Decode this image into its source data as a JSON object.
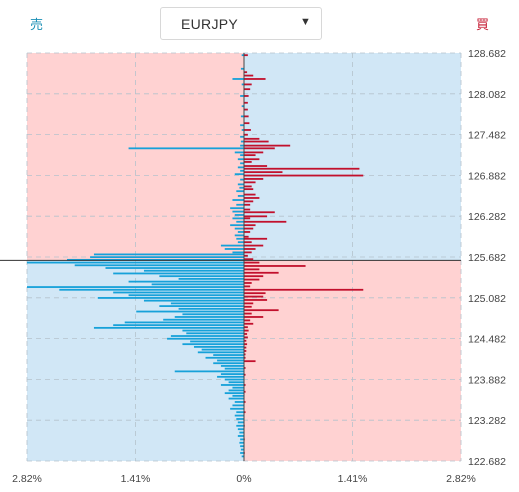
{
  "labels": {
    "sell": "売",
    "buy": "買"
  },
  "selector": {
    "value": "EURJPY",
    "caret": "▼"
  },
  "chart_data": {
    "type": "bar",
    "orientation": "horizontal",
    "current_rate": 125.632,
    "y_ticks": [
      "128.682",
      "128.082",
      "127.482",
      "126.882",
      "126.282",
      "125.682",
      "125.082",
      "124.482",
      "123.882",
      "123.282",
      "122.682"
    ],
    "x_ticks": [
      "2.82%",
      "1.41%",
      "0%",
      "1.41%",
      "2.82%"
    ],
    "ylim": [
      122.682,
      128.682
    ],
    "xlim": [
      -2.82,
      2.82
    ],
    "colors": {
      "sell_bar": "#16a1d9",
      "buy_bar": "#c2102c",
      "upper_left_bg": "#ffd2d2",
      "upper_right_bg": "#d1e7f6",
      "lower_left_bg": "#d1e7f6",
      "lower_right_bg": "#ffd2d2"
    },
    "buy_series": [
      [
        128.65,
        0.05
      ],
      [
        128.4,
        0.04
      ],
      [
        128.35,
        0.12
      ],
      [
        128.3,
        0.28
      ],
      [
        128.22,
        0.1
      ],
      [
        128.15,
        0.08
      ],
      [
        128.05,
        0.06
      ],
      [
        127.95,
        0.05
      ],
      [
        127.85,
        0.05
      ],
      [
        127.75,
        0.06
      ],
      [
        127.65,
        0.07
      ],
      [
        127.55,
        0.09
      ],
      [
        127.48,
        0.05
      ],
      [
        127.42,
        0.2
      ],
      [
        127.38,
        0.32
      ],
      [
        127.32,
        0.6
      ],
      [
        127.28,
        0.4
      ],
      [
        127.22,
        0.25
      ],
      [
        127.18,
        0.15
      ],
      [
        127.12,
        0.2
      ],
      [
        127.08,
        0.1
      ],
      [
        127.02,
        0.3
      ],
      [
        126.98,
        1.5
      ],
      [
        126.93,
        0.5
      ],
      [
        126.88,
        1.55
      ],
      [
        126.83,
        0.25
      ],
      [
        126.78,
        0.15
      ],
      [
        126.72,
        0.1
      ],
      [
        126.68,
        0.12
      ],
      [
        126.6,
        0.15
      ],
      [
        126.55,
        0.2
      ],
      [
        126.5,
        0.12
      ],
      [
        126.45,
        0.08
      ],
      [
        126.38,
        0.08
      ],
      [
        126.34,
        0.4
      ],
      [
        126.28,
        0.3
      ],
      [
        126.25,
        0.08
      ],
      [
        126.2,
        0.55
      ],
      [
        126.15,
        0.15
      ],
      [
        126.1,
        0.12
      ],
      [
        126.05,
        0.08
      ],
      [
        125.98,
        0.06
      ],
      [
        125.95,
        0.3
      ],
      [
        125.9,
        0.1
      ],
      [
        125.85,
        0.25
      ],
      [
        125.8,
        0.15
      ],
      [
        125.75,
        0.1
      ],
      [
        125.7,
        0.05
      ],
      [
        125.65,
        0.12
      ],
      [
        125.6,
        0.2
      ],
      [
        125.55,
        0.8
      ],
      [
        125.5,
        0.2
      ],
      [
        125.45,
        0.45
      ],
      [
        125.4,
        0.25
      ],
      [
        125.35,
        0.2
      ],
      [
        125.3,
        0.1
      ],
      [
        125.25,
        0.08
      ],
      [
        125.2,
        1.55
      ],
      [
        125.15,
        0.28
      ],
      [
        125.1,
        0.25
      ],
      [
        125.05,
        0.3
      ],
      [
        125.0,
        0.12
      ],
      [
        124.95,
        0.1
      ],
      [
        124.9,
        0.45
      ],
      [
        124.85,
        0.1
      ],
      [
        124.8,
        0.25
      ],
      [
        124.75,
        0.08
      ],
      [
        124.7,
        0.12
      ],
      [
        124.65,
        0.05
      ],
      [
        124.6,
        0.06
      ],
      [
        124.55,
        0.04
      ],
      [
        124.5,
        0.05
      ],
      [
        124.45,
        0.03
      ],
      [
        124.4,
        0.04
      ],
      [
        124.35,
        0.03
      ],
      [
        124.3,
        0.03
      ],
      [
        124.25,
        0.02
      ],
      [
        124.2,
        0.02
      ],
      [
        124.15,
        0.15
      ],
      [
        124.05,
        0.02
      ],
      [
        123.95,
        0.02
      ],
      [
        123.8,
        0.02
      ],
      [
        123.7,
        0.02
      ],
      [
        123.55,
        0.02
      ],
      [
        123.4,
        0.02
      ],
      [
        123.2,
        0.01
      ],
      [
        123.0,
        0.01
      ],
      [
        122.8,
        0.01
      ]
    ],
    "sell_series": [
      [
        128.65,
        0.03
      ],
      [
        128.45,
        0.04
      ],
      [
        128.3,
        0.15
      ],
      [
        128.22,
        0.03
      ],
      [
        128.05,
        0.05
      ],
      [
        127.9,
        0.03
      ],
      [
        127.75,
        0.04
      ],
      [
        127.62,
        0.05
      ],
      [
        127.55,
        0.03
      ],
      [
        127.45,
        0.05
      ],
      [
        127.38,
        0.04
      ],
      [
        127.32,
        0.05
      ],
      [
        127.28,
        1.5
      ],
      [
        127.22,
        0.12
      ],
      [
        127.18,
        0.05
      ],
      [
        127.12,
        0.08
      ],
      [
        127.06,
        0.05
      ],
      [
        127.0,
        0.08
      ],
      [
        126.95,
        0.05
      ],
      [
        126.9,
        0.12
      ],
      [
        126.82,
        0.05
      ],
      [
        126.75,
        0.08
      ],
      [
        126.7,
        0.06
      ],
      [
        126.65,
        0.1
      ],
      [
        126.58,
        0.08
      ],
      [
        126.52,
        0.15
      ],
      [
        126.45,
        0.1
      ],
      [
        126.4,
        0.18
      ],
      [
        126.35,
        0.15
      ],
      [
        126.3,
        0.12
      ],
      [
        126.25,
        0.15
      ],
      [
        126.2,
        0.1
      ],
      [
        126.15,
        0.18
      ],
      [
        126.1,
        0.12
      ],
      [
        126.05,
        0.08
      ],
      [
        126.0,
        0.12
      ],
      [
        125.95,
        0.1
      ],
      [
        125.9,
        0.08
      ],
      [
        125.85,
        0.3
      ],
      [
        125.8,
        0.25
      ],
      [
        125.75,
        0.15
      ],
      [
        125.72,
        1.95
      ],
      [
        125.68,
        2.0
      ],
      [
        125.64,
        2.3
      ],
      [
        125.6,
        2.82
      ],
      [
        125.56,
        2.2
      ],
      [
        125.52,
        1.8
      ],
      [
        125.48,
        1.3
      ],
      [
        125.44,
        1.7
      ],
      [
        125.4,
        1.1
      ],
      [
        125.36,
        0.85
      ],
      [
        125.32,
        1.5
      ],
      [
        125.28,
        1.2
      ],
      [
        125.24,
        2.82
      ],
      [
        125.2,
        2.4
      ],
      [
        125.16,
        1.7
      ],
      [
        125.12,
        1.5
      ],
      [
        125.08,
        1.9
      ],
      [
        125.04,
        1.3
      ],
      [
        125.0,
        0.95
      ],
      [
        124.96,
        1.1
      ],
      [
        124.92,
        0.85
      ],
      [
        124.88,
        1.4
      ],
      [
        124.84,
        0.8
      ],
      [
        124.8,
        0.9
      ],
      [
        124.76,
        1.05
      ],
      [
        124.72,
        1.55
      ],
      [
        124.68,
        1.7
      ],
      [
        124.64,
        1.95
      ],
      [
        124.6,
        0.8
      ],
      [
        124.56,
        0.75
      ],
      [
        124.52,
        0.95
      ],
      [
        124.48,
        1.0
      ],
      [
        124.44,
        0.7
      ],
      [
        124.4,
        0.8
      ],
      [
        124.36,
        0.65
      ],
      [
        124.32,
        0.55
      ],
      [
        124.28,
        0.6
      ],
      [
        124.24,
        0.4
      ],
      [
        124.2,
        0.5
      ],
      [
        124.16,
        0.35
      ],
      [
        124.12,
        0.4
      ],
      [
        124.08,
        0.3
      ],
      [
        124.04,
        0.25
      ],
      [
        124.0,
        0.9
      ],
      [
        123.96,
        0.3
      ],
      [
        123.92,
        0.35
      ],
      [
        123.88,
        0.25
      ],
      [
        123.84,
        0.2
      ],
      [
        123.8,
        0.3
      ],
      [
        123.76,
        0.15
      ],
      [
        123.72,
        0.2
      ],
      [
        123.68,
        0.25
      ],
      [
        123.64,
        0.15
      ],
      [
        123.6,
        0.2
      ],
      [
        123.55,
        0.12
      ],
      [
        123.5,
        0.15
      ],
      [
        123.45,
        0.18
      ],
      [
        123.4,
        0.1
      ],
      [
        123.35,
        0.12
      ],
      [
        123.3,
        0.1
      ],
      [
        123.25,
        0.08
      ],
      [
        123.2,
        0.1
      ],
      [
        123.15,
        0.08
      ],
      [
        123.1,
        0.06
      ],
      [
        123.05,
        0.08
      ],
      [
        123.0,
        0.05
      ],
      [
        122.95,
        0.06
      ],
      [
        122.9,
        0.05
      ],
      [
        122.85,
        0.04
      ],
      [
        122.8,
        0.05
      ],
      [
        122.75,
        0.03
      ]
    ]
  }
}
